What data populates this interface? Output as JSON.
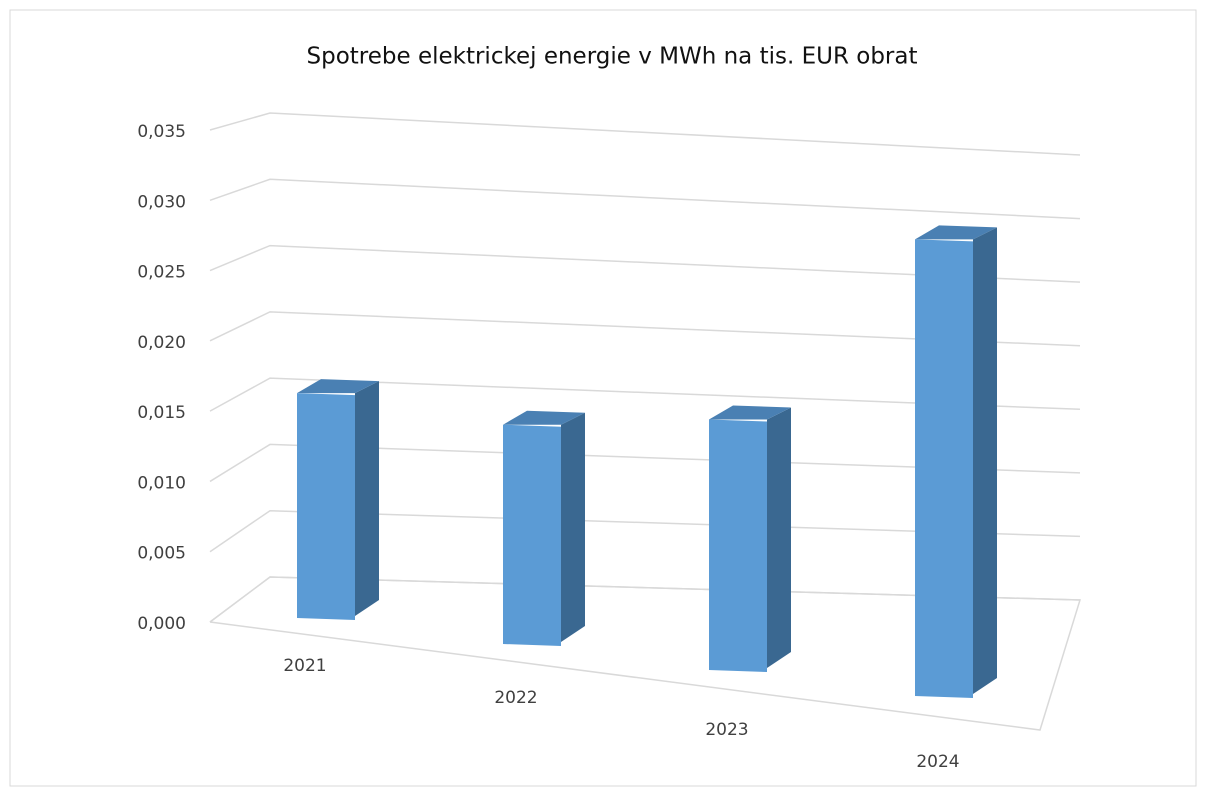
{
  "chart_data": {
    "type": "bar3d",
    "title": "Spotrebe elektrickej energie v MWh na tis. EUR obrat",
    "categories": [
      "2021",
      "2022",
      "2023",
      "2024"
    ],
    "values": [
      0.016,
      0.015,
      0.0165,
      0.029
    ],
    "color": "#5b9bd5",
    "ylim": [
      0,
      0.035
    ],
    "yticks": [
      {
        "value": 0,
        "label": "0,000"
      },
      {
        "value": 0.005,
        "label": "0,005"
      },
      {
        "value": 0.01,
        "label": "0,010"
      },
      {
        "value": 0.015,
        "label": "0,015"
      },
      {
        "value": 0.02,
        "label": "0,020"
      },
      {
        "value": 0.025,
        "label": "0,025"
      },
      {
        "value": 0.03,
        "label": "0,030"
      },
      {
        "value": 0.035,
        "label": "0,035"
      }
    ],
    "grid": true
  }
}
